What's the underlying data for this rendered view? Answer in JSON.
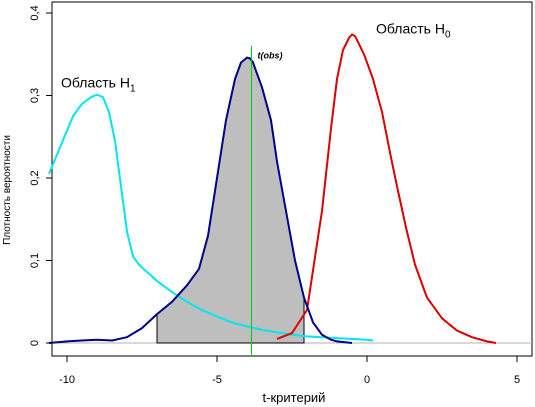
{
  "chart_data": {
    "type": "line",
    "xlabel": "t-критерий",
    "ylabel": "Плотность вероятности",
    "xlim": [
      -10.5,
      5.5
    ],
    "ylim": [
      0,
      0.4
    ],
    "x_ticks": [
      {
        "value": -10,
        "label": "-10"
      },
      {
        "value": -5,
        "label": "-5"
      },
      {
        "value": 0,
        "label": "0"
      },
      {
        "value": 5,
        "label": "5"
      }
    ],
    "y_ticks": [
      {
        "value": 0,
        "label": "0"
      },
      {
        "value": 0.1,
        "label": "0,1"
      },
      {
        "value": 0.2,
        "label": "0,2"
      },
      {
        "value": 0.3,
        "label": "0,3"
      },
      {
        "value": 0.4,
        "label": "0,4"
      }
    ],
    "colors": {
      "h1": "#00e5ee",
      "h0": "#dd0000",
      "middle": "#00008b",
      "fill": "#bebebe",
      "tobs": "#00cc00",
      "baseline": "#b0b0b0"
    },
    "t_obs": {
      "x": -3.85,
      "label": "t(obs)"
    },
    "shaded_range": [
      -7.0,
      -2.1
    ],
    "series": [
      {
        "key": "h1",
        "label_prefix": "Область H",
        "label_sub": "1",
        "label_pos": {
          "x": -10.2,
          "y": 0.31
        },
        "x": [
          -10.6,
          -10.2,
          -9.8,
          -9.5,
          -9.2,
          -9.0,
          -8.8,
          -8.6,
          -8.4,
          -8.2,
          -8.0,
          -7.8,
          -7.6,
          -7.4,
          -7.2,
          -7.0,
          -6.5,
          -6.0,
          -5.5,
          -5.0,
          -4.5,
          -4.0,
          -3.5,
          -3.0,
          -2.5,
          -2.0,
          -1.0,
          0.0,
          0.2
        ],
        "y": [
          0.205,
          0.24,
          0.275,
          0.29,
          0.298,
          0.301,
          0.298,
          0.28,
          0.245,
          0.19,
          0.135,
          0.105,
          0.095,
          0.088,
          0.082,
          0.075,
          0.062,
          0.05,
          0.04,
          0.032,
          0.025,
          0.02,
          0.016,
          0.013,
          0.01,
          0.008,
          0.006,
          0.004,
          0.003
        ]
      },
      {
        "key": "h0",
        "label_prefix": "Область H",
        "label_sub": "0",
        "label_pos": {
          "x": 0.3,
          "y": 0.375
        },
        "x": [
          -3.0,
          -2.5,
          -2.0,
          -1.5,
          -1.2,
          -1.0,
          -0.8,
          -0.6,
          -0.5,
          -0.4,
          -0.3,
          -0.1,
          0.2,
          0.5,
          0.8,
          1.0,
          1.3,
          1.6,
          2.0,
          2.5,
          3.0,
          3.5,
          4.0,
          4.3
        ],
        "y": [
          0.005,
          0.012,
          0.04,
          0.16,
          0.26,
          0.32,
          0.355,
          0.37,
          0.374,
          0.372,
          0.365,
          0.35,
          0.32,
          0.28,
          0.225,
          0.19,
          0.14,
          0.095,
          0.055,
          0.03,
          0.015,
          0.007,
          0.002,
          0.0
        ]
      },
      {
        "key": "middle",
        "x": [
          -10.6,
          -10.0,
          -9.5,
          -9.0,
          -8.5,
          -8.0,
          -7.5,
          -7.0,
          -6.5,
          -6.0,
          -5.6,
          -5.3,
          -5.0,
          -4.7,
          -4.4,
          -4.2,
          -4.0,
          -3.9,
          -3.8,
          -3.7,
          -3.5,
          -3.2,
          -3.0,
          -2.7,
          -2.4,
          -2.1,
          -1.8,
          -1.5,
          -1.2,
          -1.0,
          -0.5
        ],
        "y": [
          0.0,
          0.002,
          0.003,
          0.004,
          0.003,
          0.007,
          0.018,
          0.035,
          0.05,
          0.07,
          0.09,
          0.13,
          0.2,
          0.27,
          0.32,
          0.34,
          0.346,
          0.345,
          0.34,
          0.33,
          0.31,
          0.27,
          0.22,
          0.16,
          0.1,
          0.055,
          0.025,
          0.01,
          0.004,
          0.002,
          0.0
        ]
      }
    ]
  }
}
